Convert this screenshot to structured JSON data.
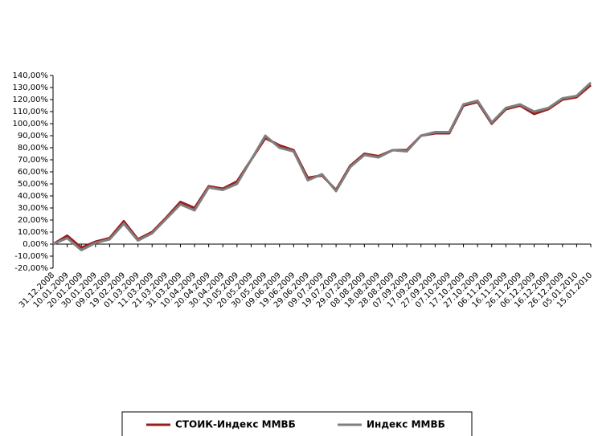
{
  "chart_data": {
    "type": "line",
    "categories": [
      "31.12.2008",
      "10.01.2009",
      "20.01.2009",
      "30.01.2009",
      "09.02.2009",
      "19.02.2009",
      "01.03.2009",
      "11.03.2009",
      "21.03.2009",
      "31.03.2009",
      "10.04.2009",
      "20.04.2009",
      "30.04.2009",
      "10.05.2009",
      "20.05.2009",
      "30.05.2009",
      "09.06.2009",
      "19.06.2009",
      "29.06.2009",
      "09.07.2009",
      "19.07.2009",
      "29.07.2009",
      "08.08.2009",
      "18.08.2009",
      "28.08.2009",
      "07.09.2009",
      "17.09.2009",
      "27.09.2009",
      "07.10.2009",
      "17.10.2009",
      "27.10.2009",
      "06.11.2009",
      "16.11.2009",
      "26.11.2009",
      "06.12.2009",
      "16.12.2009",
      "26.12.2009",
      "05.01.2010",
      "15.01.2010"
    ],
    "series": [
      {
        "name": "СТОИК-Индекс ММВБ",
        "color": "#9b1c1c",
        "values": [
          0,
          7,
          -3,
          2,
          5,
          19,
          4,
          10,
          22,
          35,
          30,
          48,
          46,
          52,
          70,
          88,
          82,
          78,
          55,
          57,
          45,
          65,
          75,
          73,
          78,
          78,
          90,
          92,
          92,
          115,
          118,
          100,
          112,
          115,
          108,
          112,
          120,
          122,
          132
        ]
      },
      {
        "name": "Индекс ММВБ",
        "color": "#7f7f7f",
        "values": [
          0,
          5,
          -5,
          1,
          4,
          17,
          3,
          9,
          21,
          33,
          28,
          47,
          45,
          50,
          70,
          90,
          80,
          77,
          53,
          58,
          44,
          64,
          74,
          72,
          78,
          77,
          90,
          93,
          93,
          116,
          119,
          101,
          113,
          116,
          110,
          113,
          121,
          123,
          134
        ]
      }
    ],
    "ylim": [
      -20,
      140
    ],
    "yticks": [
      {
        "value": -20,
        "label": "-20,00%"
      },
      {
        "value": -10,
        "label": "-10,00%"
      },
      {
        "value": 0,
        "label": "0,00%"
      },
      {
        "value": 10,
        "label": "10,00%"
      },
      {
        "value": 20,
        "label": "20,00%"
      },
      {
        "value": 30,
        "label": "30,00%"
      },
      {
        "value": 40,
        "label": "40,00%"
      },
      {
        "value": 50,
        "label": "50,00%"
      },
      {
        "value": 60,
        "label": "60,00%"
      },
      {
        "value": 70,
        "label": "70,00%"
      },
      {
        "value": 80,
        "label": "80,00%"
      },
      {
        "value": 90,
        "label": "90,00%"
      },
      {
        "value": 100,
        "label": "100,00%"
      },
      {
        "value": 110,
        "label": "110,00%"
      },
      {
        "value": 120,
        "label": "120,00%"
      },
      {
        "value": 130,
        "label": "130,00%"
      },
      {
        "value": 140,
        "label": "140,00%"
      }
    ],
    "grid": false,
    "legend": "bottom"
  }
}
